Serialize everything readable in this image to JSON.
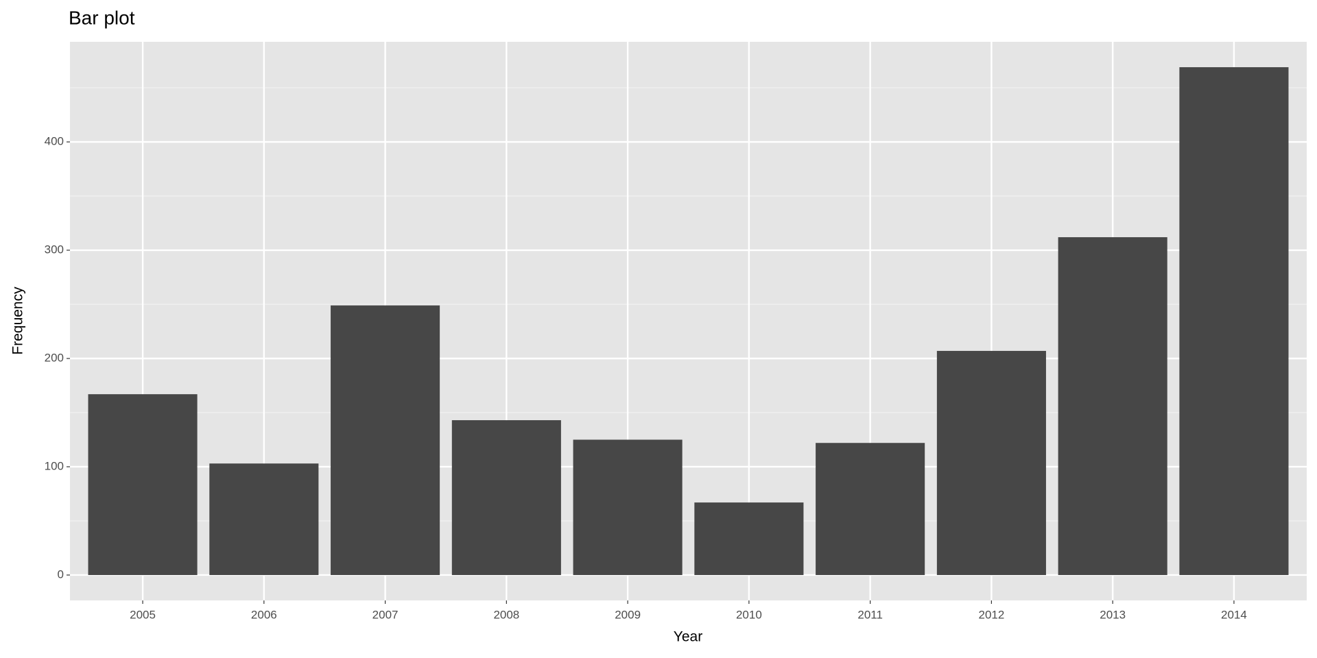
{
  "chart_data": {
    "type": "bar",
    "title": "Bar plot",
    "x_label": "Year",
    "y_label": "Frequency",
    "categories": [
      "2005",
      "2006",
      "2007",
      "2008",
      "2009",
      "2010",
      "2011",
      "2012",
      "2013",
      "2014"
    ],
    "values": [
      167,
      103,
      249,
      143,
      125,
      67,
      122,
      207,
      312,
      469
    ],
    "color": "#474747",
    "ylim": [
      -23.45,
      492.45
    ],
    "yticks": [
      0,
      100,
      200,
      300,
      400
    ],
    "yminor": [
      50,
      150,
      250,
      350,
      450
    ],
    "grid": true
  }
}
